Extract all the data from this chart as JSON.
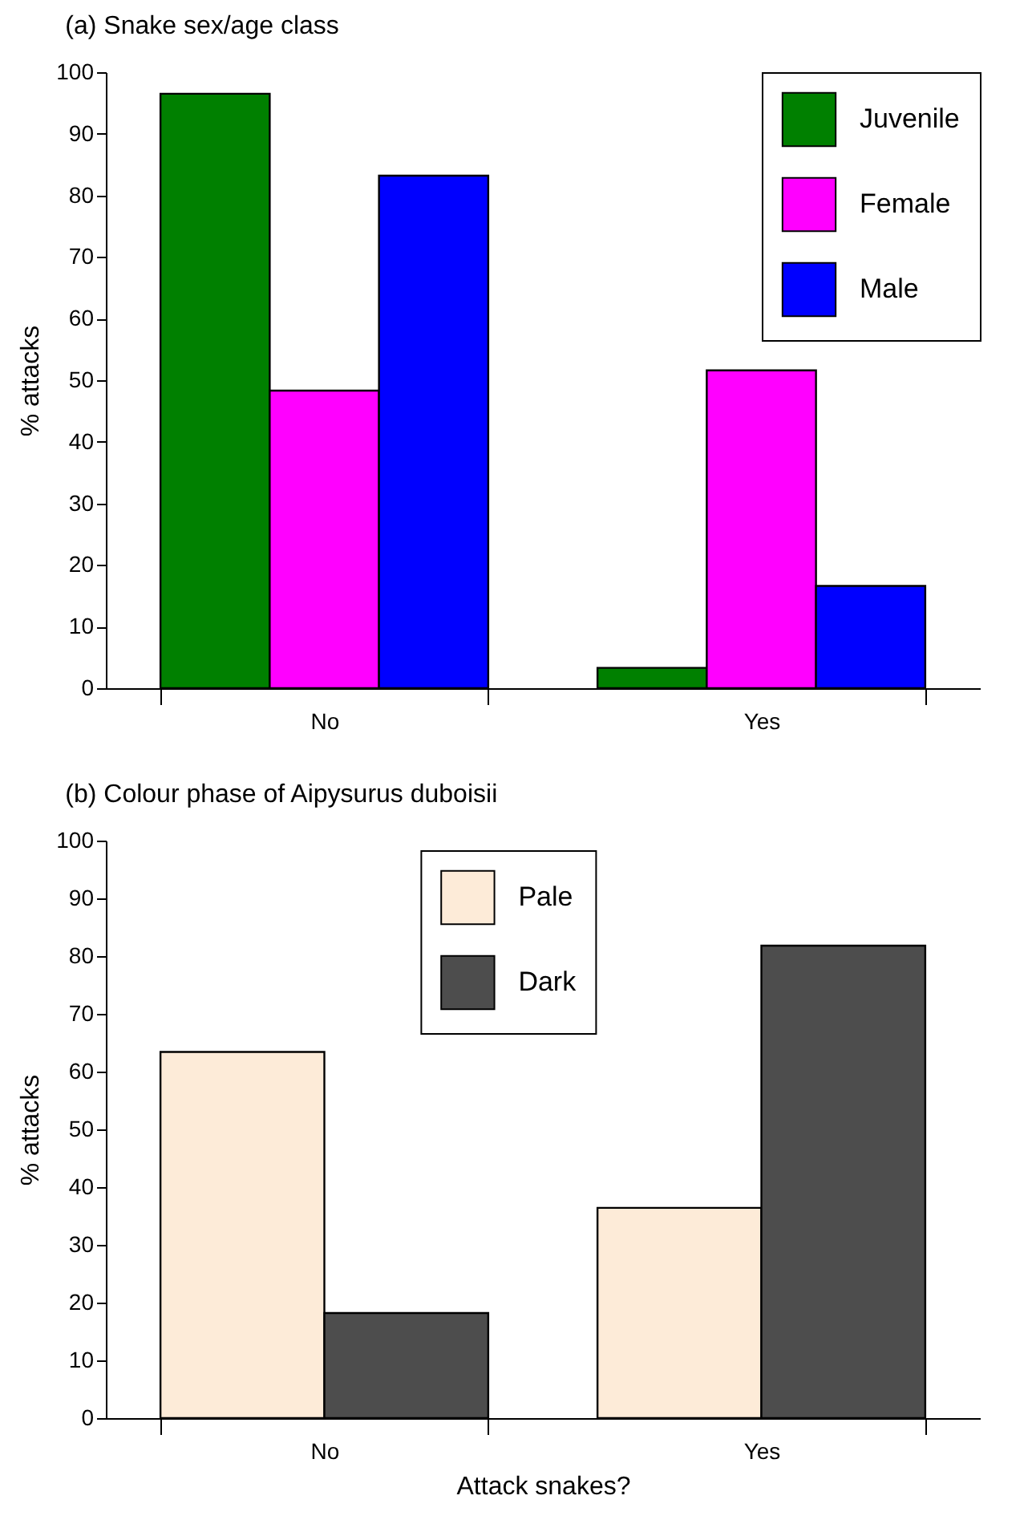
{
  "chart_data": [
    {
      "type": "bar",
      "title": "(a) Snake sex/age class",
      "ylabel": "% attacks",
      "categories": [
        "No",
        "Yes"
      ],
      "ylim": [
        0,
        100
      ],
      "yticks": [
        0,
        10,
        20,
        30,
        40,
        50,
        60,
        70,
        80,
        90,
        100
      ],
      "grid": false,
      "legend": "top right",
      "series": [
        {
          "name": "Juvenile",
          "color": "#008000",
          "values": [
            96.5,
            3.3
          ]
        },
        {
          "name": "Female",
          "color": "#ff00ff",
          "values": [
            48.3,
            51.6
          ]
        },
        {
          "name": "Male",
          "color": "#0000ff",
          "values": [
            83.2,
            16.6
          ]
        }
      ]
    },
    {
      "type": "bar",
      "title": "(b) Colour phase of Aipysurus duboisii",
      "xlabel": "Attack snakes?",
      "ylabel": "% attacks",
      "categories": [
        "No",
        "Yes"
      ],
      "ylim": [
        0,
        100
      ],
      "yticks": [
        0,
        10,
        20,
        30,
        40,
        50,
        60,
        70,
        80,
        90,
        100
      ],
      "grid": false,
      "legend": "top",
      "series": [
        {
          "name": "Pale",
          "color": "#fdebd8",
          "values": [
            63.4,
            36.4
          ]
        },
        {
          "name": "Dark",
          "color": "#4d4d4d",
          "values": [
            18.2,
            81.8
          ]
        }
      ]
    }
  ]
}
